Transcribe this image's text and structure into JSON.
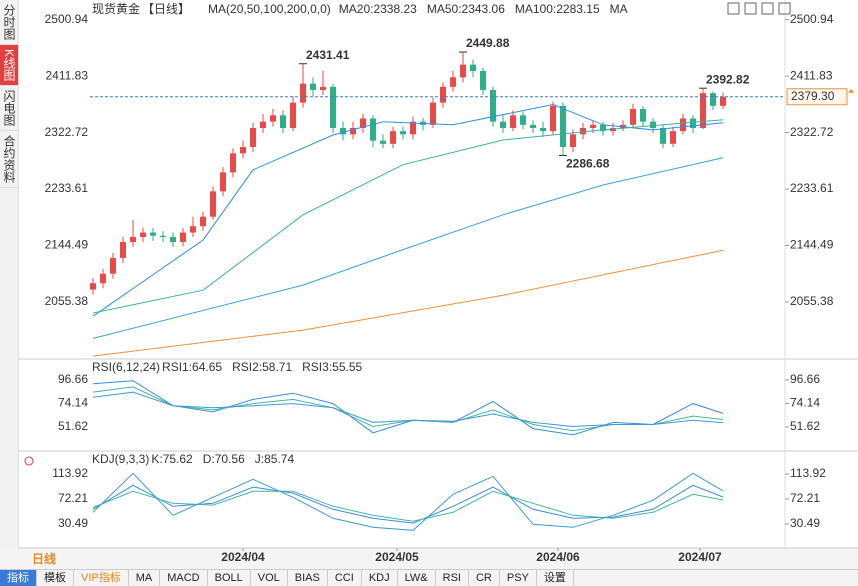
{
  "chart_data": [
    {
      "type": "candlestick",
      "title": "现货黄金",
      "subtitle": "【日线】",
      "indicator": "MA(20,50,100,200,0,0)",
      "candles": [
        [
          2075,
          2093,
          2067,
          2085
        ],
        [
          2085,
          2108,
          2077,
          2100
        ],
        [
          2100,
          2133,
          2092,
          2125
        ],
        [
          2125,
          2158,
          2117,
          2150
        ],
        [
          2150,
          2185,
          2142,
          2158
        ],
        [
          2158,
          2173,
          2150,
          2165
        ],
        [
          2165,
          2172,
          2152,
          2160
        ],
        [
          2160,
          2167,
          2150,
          2158
        ],
        [
          2158,
          2165,
          2142,
          2150
        ],
        [
          2150,
          2172,
          2143,
          2165
        ],
        [
          2165,
          2190,
          2158,
          2175
        ],
        [
          2175,
          2198,
          2168,
          2190
        ],
        [
          2190,
          2238,
          2185,
          2230
        ],
        [
          2230,
          2268,
          2222,
          2260
        ],
        [
          2260,
          2298,
          2252,
          2290
        ],
        [
          2290,
          2310,
          2282,
          2300
        ],
        [
          2300,
          2338,
          2292,
          2330
        ],
        [
          2330,
          2352,
          2322,
          2340
        ],
        [
          2340,
          2360,
          2332,
          2350
        ],
        [
          2350,
          2358,
          2322,
          2330
        ],
        [
          2330,
          2380,
          2325,
          2370
        ],
        [
          2370,
          2431.41,
          2362,
          2400
        ],
        [
          2400,
          2410,
          2380,
          2390
        ],
        [
          2390,
          2420,
          2382,
          2395
        ],
        [
          2395,
          2400,
          2322,
          2330
        ],
        [
          2330,
          2340,
          2310,
          2320
        ],
        [
          2320,
          2340,
          2312,
          2330
        ],
        [
          2330,
          2352,
          2322,
          2345
        ],
        [
          2345,
          2350,
          2300,
          2310
        ],
        [
          2310,
          2320,
          2298,
          2305
        ],
        [
          2305,
          2332,
          2298,
          2325
        ],
        [
          2325,
          2332,
          2312,
          2320
        ],
        [
          2320,
          2348,
          2312,
          2340
        ],
        [
          2340,
          2346,
          2326,
          2335
        ],
        [
          2335,
          2378,
          2330,
          2370
        ],
        [
          2370,
          2402,
          2362,
          2395
        ],
        [
          2395,
          2420,
          2388,
          2410
        ],
        [
          2410,
          2449.88,
          2402,
          2430
        ],
        [
          2430,
          2438,
          2410,
          2420
        ],
        [
          2420,
          2425,
          2382,
          2390
        ],
        [
          2390,
          2395,
          2332,
          2340
        ],
        [
          2340,
          2350,
          2322,
          2330
        ],
        [
          2330,
          2358,
          2325,
          2350
        ],
        [
          2350,
          2356,
          2328,
          2335
        ],
        [
          2335,
          2342,
          2322,
          2330
        ],
        [
          2330,
          2340,
          2316,
          2325
        ],
        [
          2325,
          2372,
          2320,
          2365
        ],
        [
          2365,
          2370,
          2286.68,
          2300
        ],
        [
          2300,
          2328,
          2292,
          2320
        ],
        [
          2320,
          2338,
          2312,
          2330
        ],
        [
          2330,
          2342,
          2322,
          2335
        ],
        [
          2335,
          2340,
          2318,
          2325
        ],
        [
          2325,
          2338,
          2318,
          2330
        ],
        [
          2330,
          2342,
          2325,
          2335
        ],
        [
          2335,
          2368,
          2330,
          2360
        ],
        [
          2360,
          2365,
          2332,
          2340
        ],
        [
          2340,
          2346,
          2322,
          2330
        ],
        [
          2330,
          2335,
          2298,
          2305
        ],
        [
          2305,
          2332,
          2300,
          2325
        ],
        [
          2325,
          2352,
          2320,
          2345
        ],
        [
          2345,
          2350,
          2322,
          2330
        ],
        [
          2330,
          2392.82,
          2328,
          2385
        ],
        [
          2385,
          2388,
          2358,
          2365
        ],
        [
          2365,
          2386,
          2360,
          2379.3
        ]
      ],
      "up_color": "#e84a4a",
      "down_color": "#2fae8a",
      "series": [
        {
          "name": "MA20:2338.23",
          "color": "#2f8fe0",
          "x": [
            0,
            11,
            16,
            24,
            29,
            36,
            46,
            51,
            56,
            63
          ],
          "values": [
            2033,
            2153,
            2264,
            2319,
            2340,
            2335,
            2367,
            2335,
            2327,
            2338.23
          ]
        },
        {
          "name": "MA50:2343.06",
          "color": "#3ab09e",
          "x": [
            0,
            11,
            21,
            31,
            41,
            51,
            63
          ],
          "values": [
            2038,
            2074,
            2193,
            2272,
            2311,
            2327,
            2343.06
          ]
        },
        {
          "name": "MA100:2283.15",
          "color": "#3aa0e0",
          "x": [
            0,
            21,
            31,
            41,
            51,
            63
          ],
          "values": [
            1998,
            2082,
            2138,
            2193,
            2240,
            2283.15
          ]
        },
        {
          "name": "MA",
          "color": "#f0903a",
          "x": [
            0,
            21,
            41,
            63
          ],
          "values": [
            1970,
            2011,
            2066,
            2137
          ]
        }
      ],
      "last_price": {
        "value": 2379.3,
        "label": "2379.30"
      },
      "ylim": [
        1967,
        2532
      ],
      "yticks": [
        2500.94,
        2411.83,
        2322.72,
        2233.61,
        2144.49,
        2055.38
      ],
      "xticks": [
        {
          "value": 15,
          "label": "2024/04"
        },
        {
          "value": 30.4,
          "label": "2024/05"
        },
        {
          "value": 46.5,
          "label": "2024/06"
        },
        {
          "value": 60.7,
          "label": "2024/07"
        }
      ],
      "grid": false
    },
    {
      "type": "line",
      "title": "RSI(6,12,24)",
      "ylim": [
        27.6,
        115.8
      ],
      "yticks": [
        96.66,
        74.14,
        51.62
      ],
      "x": [
        0,
        4,
        8,
        12,
        16,
        20,
        24,
        28,
        32,
        36,
        40,
        44,
        48,
        52,
        56,
        60,
        63
      ],
      "series": [
        {
          "name": "RSI1:64.65",
          "color": "#3a8be0",
          "values": [
            93,
            96,
            72,
            66,
            78,
            84,
            74,
            46,
            58,
            56,
            76,
            50,
            44,
            56,
            54,
            74,
            64.65
          ]
        },
        {
          "name": "RSI2:58.71",
          "color": "#46b4a0",
          "values": [
            85,
            90,
            72,
            68,
            74,
            78,
            70,
            52,
            58,
            56,
            68,
            54,
            48,
            54,
            54,
            62,
            58.71
          ]
        },
        {
          "name": "RSI3:55.55",
          "color": "#3a9ad8",
          "values": [
            80,
            85,
            72,
            70,
            72,
            74,
            70,
            56,
            58,
            57,
            64,
            56,
            52,
            54,
            54,
            58,
            55.55
          ]
        }
      ]
    },
    {
      "type": "line",
      "title": "KDJ(9,3,3)",
      "ylim": [
        -9.5,
        150.6
      ],
      "yticks": [
        113.92,
        72.21,
        30.49
      ],
      "x": [
        0,
        4,
        8,
        12,
        16,
        20,
        24,
        28,
        32,
        36,
        40,
        44,
        48,
        52,
        56,
        60,
        63
      ],
      "series": [
        {
          "name": "K:75.62",
          "color": "#3a8be0",
          "values": [
            55,
            95,
            60,
            65,
            92,
            82,
            55,
            40,
            32,
            60,
            92,
            55,
            40,
            42,
            55,
            95,
            75.62
          ]
        },
        {
          "name": "D:70.56",
          "color": "#46b4a0",
          "values": [
            58,
            85,
            65,
            62,
            85,
            85,
            60,
            45,
            35,
            50,
            85,
            65,
            45,
            40,
            50,
            80,
            70.56
          ]
        },
        {
          "name": "J:85.74",
          "color": "#3a9ad8",
          "values": [
            50,
            115,
            45,
            75,
            105,
            75,
            40,
            25,
            20,
            80,
            110,
            30,
            25,
            45,
            70,
            115,
            85.74
          ]
        }
      ]
    }
  ],
  "sidebar": [
    "分时图",
    "K线图",
    "闪电图",
    "合约资料"
  ],
  "period": "日线",
  "toolbar": [
    "指标",
    "模板",
    "VIP指标",
    "MA",
    "MACD",
    "BOLL",
    "VOL",
    "BIAS",
    "CCI",
    "KDJ",
    "LW&",
    "RSI",
    "CR",
    "PSY",
    "设置"
  ]
}
